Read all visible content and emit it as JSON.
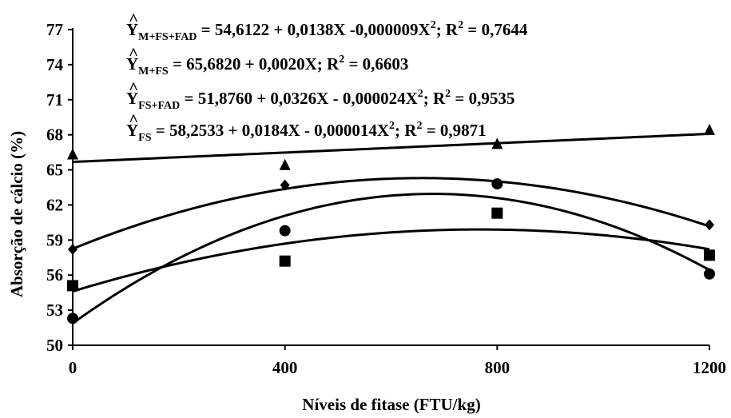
{
  "chart_data": {
    "type": "scatter",
    "xlabel": "Níveis de fitase (FTU/kg)",
    "ylabel": "Absorção de cálcio (%)",
    "xlim": [
      0,
      1200
    ],
    "ylim": [
      50,
      77
    ],
    "x_ticks": [
      "0",
      "400",
      "800",
      "1200"
    ],
    "y_ticks": [
      "50",
      "53",
      "56",
      "59",
      "62",
      "65",
      "68",
      "71",
      "74",
      "77"
    ],
    "grid": false,
    "x": [
      0,
      400,
      800,
      1200
    ],
    "series": [
      {
        "marker": "diamond",
        "values": [
          58.2,
          63.7,
          63.8,
          60.3
        ],
        "fit": [
          54.6122,
          0.0138,
          -9e-06
        ]
      },
      {
        "marker": "triangle",
        "values": [
          66.3,
          65.4,
          67.2,
          68.4
        ],
        "fit": [
          65.682,
          0.002,
          0
        ]
      },
      {
        "marker": "circle",
        "values": [
          52.3,
          59.8,
          63.8,
          56.1
        ],
        "fit": [
          51.876,
          0.0326,
          -2.4e-05
        ]
      },
      {
        "marker": "square",
        "values": [
          55.1,
          57.2,
          61.3,
          57.7
        ],
        "fit": [
          58.2533,
          0.0184,
          -1.4e-05
        ]
      }
    ],
    "equations": [
      {
        "hat": "^",
        "y": "Y",
        "sub": "M+FS+FAD",
        "lhs_rest": " = 54,6122 + 0,0138X -0,000009X",
        "sup": "2",
        "mid": "; R",
        "sup2": "2",
        "rhs": " = 0,7644"
      },
      {
        "hat": "^",
        "y": "Y",
        "sub": "M+FS",
        "lhs_rest": " = 65,6820 + 0,0020X; R",
        "sup": "2",
        "mid": "",
        "sup2": "",
        "rhs": " = 0,6603"
      },
      {
        "hat": "^",
        "y": "Y",
        "sub": "FS+FAD",
        "lhs_rest": " = 51,8760 + 0,0326X - 0,000024X",
        "sup": "2",
        "mid": "; R",
        "sup2": "2",
        "rhs": " = 0,9535"
      },
      {
        "hat": "^",
        "y": "Y",
        "sub": "FS",
        "lhs_rest": " = 58,2533 + 0,0184X - 0,000014X",
        "sup": "2",
        "mid": "; R",
        "sup2": "2",
        "rhs": " = 0,9871"
      }
    ]
  }
}
